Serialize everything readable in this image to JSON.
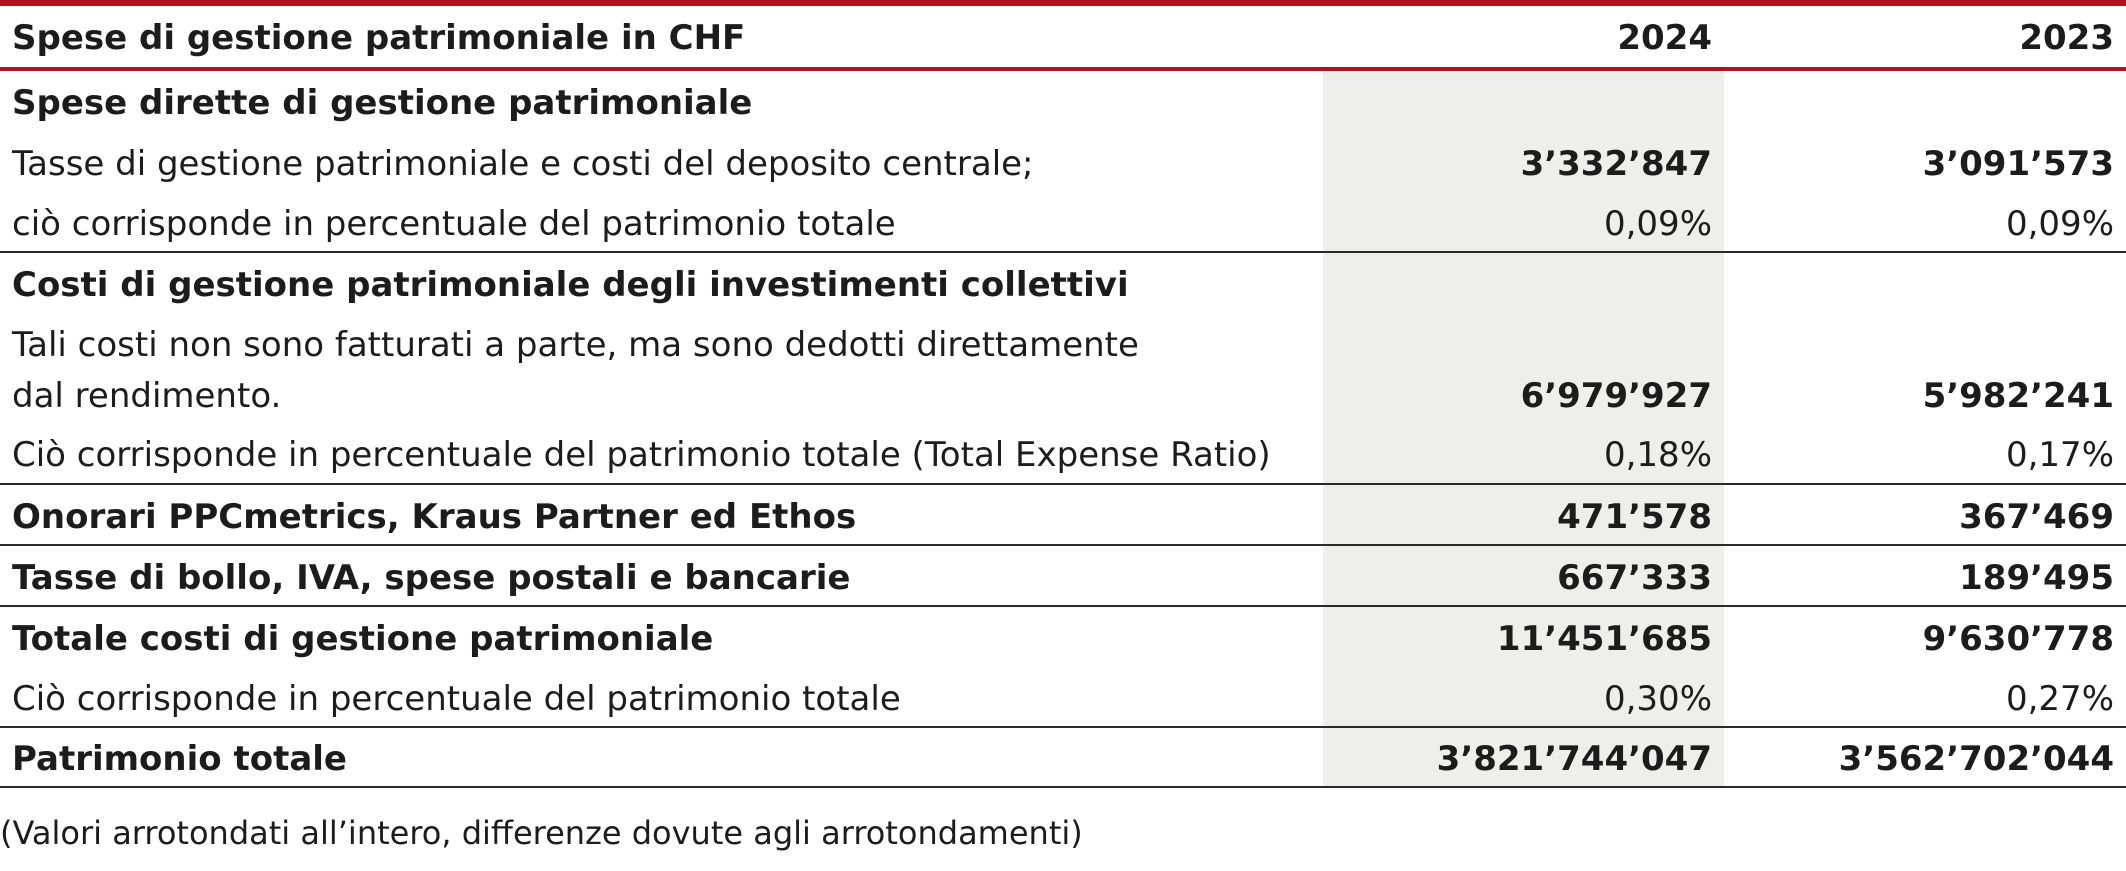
{
  "header": {
    "title": "Spese di gestione patrimoniale in CHF",
    "year1": "2024",
    "year2": "2023"
  },
  "rows": [
    {
      "label": "Spese dirette di gestione patrimoniale",
      "v1": "",
      "v2": ""
    },
    {
      "label": "Tasse di gestione patrimoniale e costi del deposito centrale;",
      "v1": "3’332’847",
      "v2": "3’091’573"
    },
    {
      "label": "ciò corrisponde in percentuale del patrimonio totale",
      "v1": "0,09%",
      "v2": "0,09%"
    },
    {
      "label": "Costi di gestione patrimoniale degli investimenti collettivi",
      "v1": "",
      "v2": ""
    },
    {
      "label": "Tali costi non sono fatturati a parte, ma sono dedotti direttamente",
      "v1": "",
      "v2": ""
    },
    {
      "label": "dal rendimento.",
      "v1": "6’979’927",
      "v2": "5’982’241"
    },
    {
      "label": "Ciò corrisponde in percentuale del patrimonio totale (Total Expense Ratio)",
      "v1": "0,18%",
      "v2": "0,17%"
    },
    {
      "label": "Onorari PPCmetrics, Kraus Partner ed Ethos",
      "v1": "471’578",
      "v2": "367’469"
    },
    {
      "label": "Tasse di bollo, IVA, spese postali e bancarie",
      "v1": "667’333",
      "v2": "189’495"
    },
    {
      "label": "Totale costi di gestione patrimoniale",
      "v1": "11’451’685",
      "v2": "9’630’778"
    },
    {
      "label": "Ciò corrisponde in percentuale del patrimonio totale",
      "v1": "0,30%",
      "v2": "0,27%"
    },
    {
      "label": "Patrimonio totale",
      "v1": "3’821’744’047",
      "v2": "3’562’702’044"
    }
  ],
  "footnote": "(Valori arrotondati all’intero, differenze dovute agli arrotondamenti)"
}
